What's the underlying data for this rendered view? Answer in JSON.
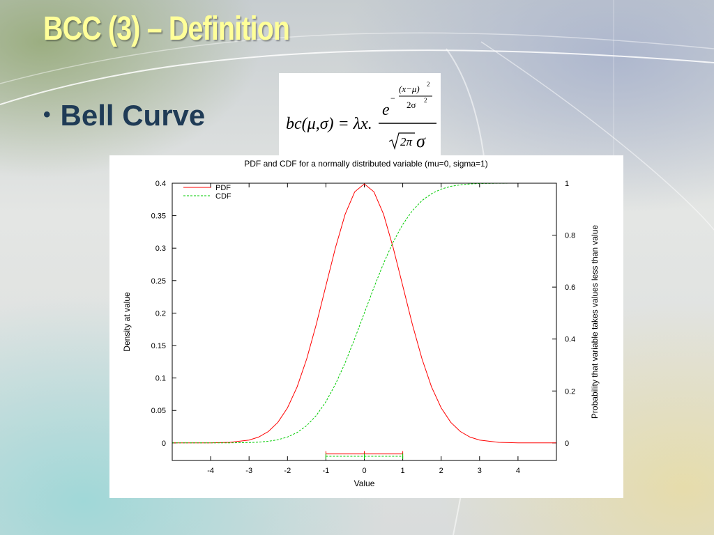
{
  "slide": {
    "title": "BCC (3) – Definition",
    "bullet": "Bell Curve"
  },
  "formula": {
    "lhs": "bc(μ,σ) = λx.",
    "base": "e",
    "exp_numerator": "(x−μ)",
    "exp_power": "2",
    "exp_denominator": "2σ",
    "exp_denominator_power": "2",
    "minus": "−",
    "denominator_sqrt_arg": "2π",
    "denominator_sigma": "σ"
  },
  "chart_data": {
    "type": "line",
    "title": "PDF and CDF for a normally distributed variable (mu=0, sigma=1)",
    "xlabel": "Value",
    "ylabel": "Density at value",
    "y2label": "Probability that variable takes values less than value",
    "xlim": [
      -5,
      5
    ],
    "ylim": [
      -0.027,
      0.4
    ],
    "y2lim": [
      -0.0675,
      1.0
    ],
    "xticks": [
      "-4",
      "-3",
      "-2",
      "-1",
      "0",
      "1",
      "2",
      "3",
      "4"
    ],
    "yticks": [
      "0",
      "0.05",
      "0.1",
      "0.15",
      "0.2",
      "0.25",
      "0.3",
      "0.35",
      "0.4"
    ],
    "y2ticks": [
      "0",
      "0.2",
      "0.4",
      "0.6",
      "0.8",
      "1"
    ],
    "legend_position": "top-left",
    "x": [
      -5,
      -4.5,
      -4,
      -3.5,
      -3,
      -2.75,
      -2.5,
      -2.25,
      -2,
      -1.75,
      -1.5,
      -1.25,
      -1,
      -0.75,
      -0.5,
      -0.25,
      0,
      0.25,
      0.5,
      0.75,
      1,
      1.25,
      1.5,
      1.75,
      2,
      2.25,
      2.5,
      2.75,
      3,
      3.5,
      4,
      4.5,
      5
    ],
    "series": [
      {
        "name": "PDF",
        "color": "#ff0000",
        "axis": "left",
        "values": [
          1.5e-06,
          1.6e-05,
          0.00013,
          0.00087,
          0.0044,
          0.0091,
          0.0175,
          0.0317,
          0.054,
          0.0863,
          0.1295,
          0.1826,
          0.242,
          0.3011,
          0.3521,
          0.3867,
          0.3989,
          0.3867,
          0.3521,
          0.3011,
          0.242,
          0.1826,
          0.1295,
          0.0863,
          0.054,
          0.0317,
          0.0175,
          0.0091,
          0.0044,
          0.00087,
          0.00013,
          1.6e-05,
          1.5e-06
        ]
      },
      {
        "name": "CDF",
        "color": "#00cc00",
        "axis": "right",
        "values": [
          3e-07,
          3.4e-06,
          3e-05,
          0.00023,
          0.0013,
          0.003,
          0.0062,
          0.0122,
          0.0228,
          0.0401,
          0.0668,
          0.1056,
          0.1587,
          0.2266,
          0.3085,
          0.4013,
          0.5,
          0.5987,
          0.6915,
          0.7734,
          0.8413,
          0.8944,
          0.9332,
          0.9599,
          0.9772,
          0.9878,
          0.9938,
          0.997,
          0.9987,
          0.99977,
          0.99997,
          0.9999966,
          0.9999997
        ]
      }
    ],
    "intervals": [
      {
        "series": "PDF",
        "from": -1,
        "mid": 0,
        "to": 1
      },
      {
        "series": "CDF",
        "from": -1,
        "mid": 0,
        "to": 1
      }
    ]
  }
}
